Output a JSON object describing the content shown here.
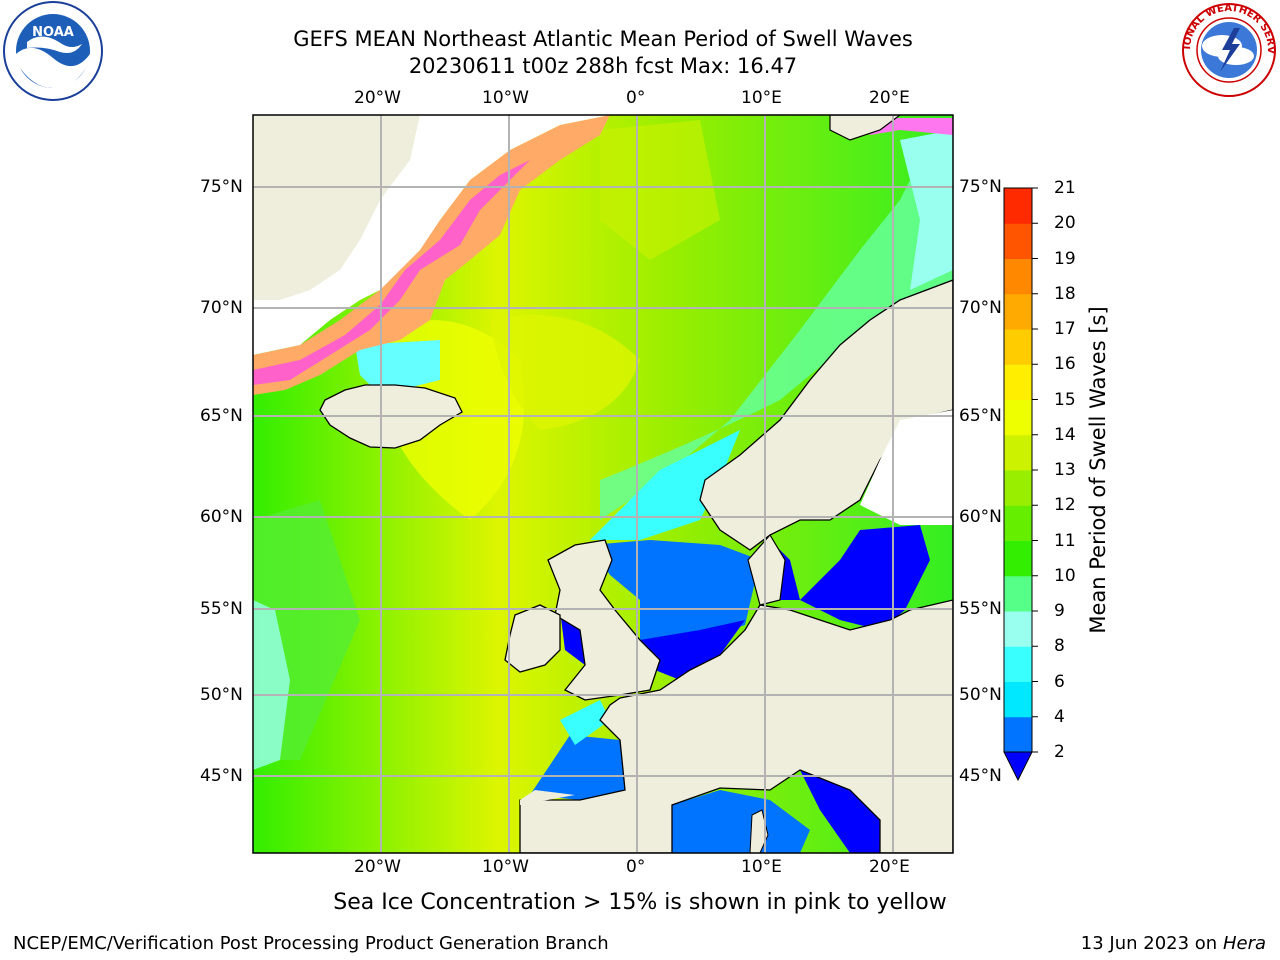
{
  "header": {
    "title_line1": "GEFS MEAN Northeast Atlantic Mean Period of Swell Waves",
    "title_line2": "20230611 t00z 288h fcst   Max: 16.47"
  },
  "map": {
    "lon_labels_top": [
      "20°W",
      "10°W",
      "0°",
      "10°E",
      "20°E"
    ],
    "lon_labels_bottom": [
      "20°W",
      "10°W",
      "0°",
      "10°E",
      "20°E"
    ],
    "lat_labels_left": [
      "75°N",
      "70°N",
      "65°N",
      "60°N",
      "55°N",
      "50°N",
      "45°N"
    ],
    "lat_labels_right": [
      "75°N",
      "70°N",
      "65°N",
      "60°N",
      "55°N",
      "50°N",
      "45°N"
    ],
    "colors": {
      "land": "#efeedc",
      "grid": "#b3b3b3",
      "ice_pink": "#ff55dd",
      "ice_orange": "#ffaa66",
      "swell_low": "#0000ff",
      "swell_mid": "#7fff66",
      "swell_high": "#eeff00"
    }
  },
  "colorbar": {
    "label": "Mean Period of Swell Waves [s]",
    "ticks": [
      "2",
      "4",
      "6",
      "8",
      "9",
      "10",
      "11",
      "12",
      "13",
      "14",
      "15",
      "16",
      "17",
      "18",
      "19",
      "20",
      "21"
    ],
    "colors": [
      "#0000ff",
      "#0073ff",
      "#00e8ff",
      "#39ffff",
      "#99ffee",
      "#55ff88",
      "#33ee00",
      "#66ee00",
      "#99ee00",
      "#ccf200",
      "#eeff00",
      "#ffee00",
      "#ffcc00",
      "#ffaa00",
      "#ff8800",
      "#ff5500",
      "#ff2a00",
      "#ff0000"
    ]
  },
  "note": "Sea Ice Concentration > 15% is shown in pink to yellow",
  "footer": {
    "left": "NCEP/EMC/Verification Post Processing Product Generation Branch",
    "right_date": "13 Jun 2023 on",
    "right_system": "Hera"
  },
  "logos": {
    "left": "NOAA",
    "right": "NATIONAL WEATHER SERVICE"
  }
}
